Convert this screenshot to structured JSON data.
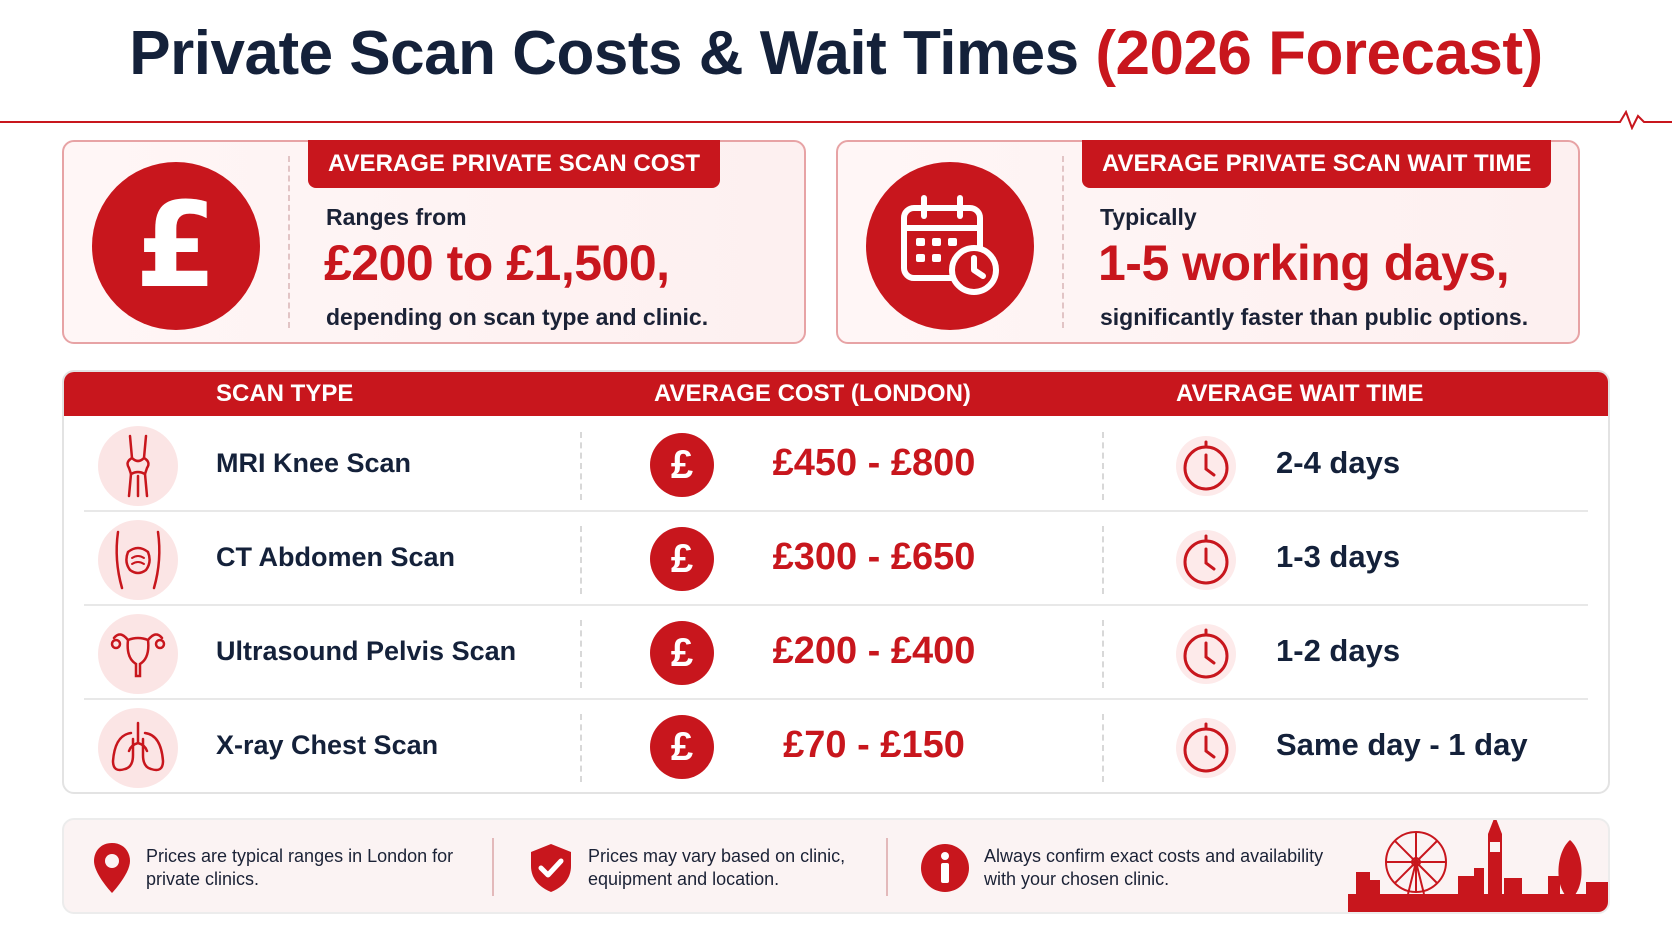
{
  "header": {
    "title_main": "Private Scan Costs & Wait Times",
    "title_accent": "(2026 Forecast)"
  },
  "cost_card": {
    "label": "AVERAGE PRIVATE SCAN COST",
    "line1": "Ranges from",
    "big": "£200 to £1,500,",
    "line3": "depending on scan type and clinic.",
    "icon": "pound-sign-icon"
  },
  "wait_card": {
    "label": "AVERAGE PRIVATE SCAN WAIT TIME",
    "line1": "Typically",
    "big": "1-5 working days,",
    "line3": "significantly faster than public options.",
    "icon": "calendar-clock-icon"
  },
  "table": {
    "headers": [
      "SCAN TYPE",
      "AVERAGE COST (LONDON)",
      "AVERAGE WAIT TIME"
    ],
    "currency_symbol": "£",
    "rows": [
      {
        "name": "MRI Knee Scan",
        "cost": "£450 - £800",
        "wait": "2-4 days",
        "icon": "knee-joint-icon"
      },
      {
        "name": "CT Abdomen Scan",
        "cost": "£300 - £650",
        "wait": "1-3 days",
        "icon": "abdomen-icon"
      },
      {
        "name": "Ultrasound Pelvis Scan",
        "cost": "£200 - £400",
        "wait": "1-2 days",
        "icon": "pelvis-uterus-icon"
      },
      {
        "name": "X-ray Chest Scan",
        "cost": "£70 - £150",
        "wait": "Same day - 1 day",
        "icon": "lungs-icon"
      }
    ]
  },
  "footer": {
    "notes": [
      {
        "icon": "location-pin-icon",
        "line1": "Prices are typical ranges in London for",
        "line2": "private clinics."
      },
      {
        "icon": "shield-check-icon",
        "line1": "Prices may vary based on clinic,",
        "line2": "equipment and location."
      },
      {
        "icon": "info-icon",
        "line1": "Always confirm exact costs and availability",
        "line2": "with your chosen clinic."
      }
    ],
    "decoration": "london-skyline-icon"
  },
  "colors": {
    "accent": "#c8161d",
    "navy": "#14213a",
    "soft_pink": "#fbe5e5"
  }
}
